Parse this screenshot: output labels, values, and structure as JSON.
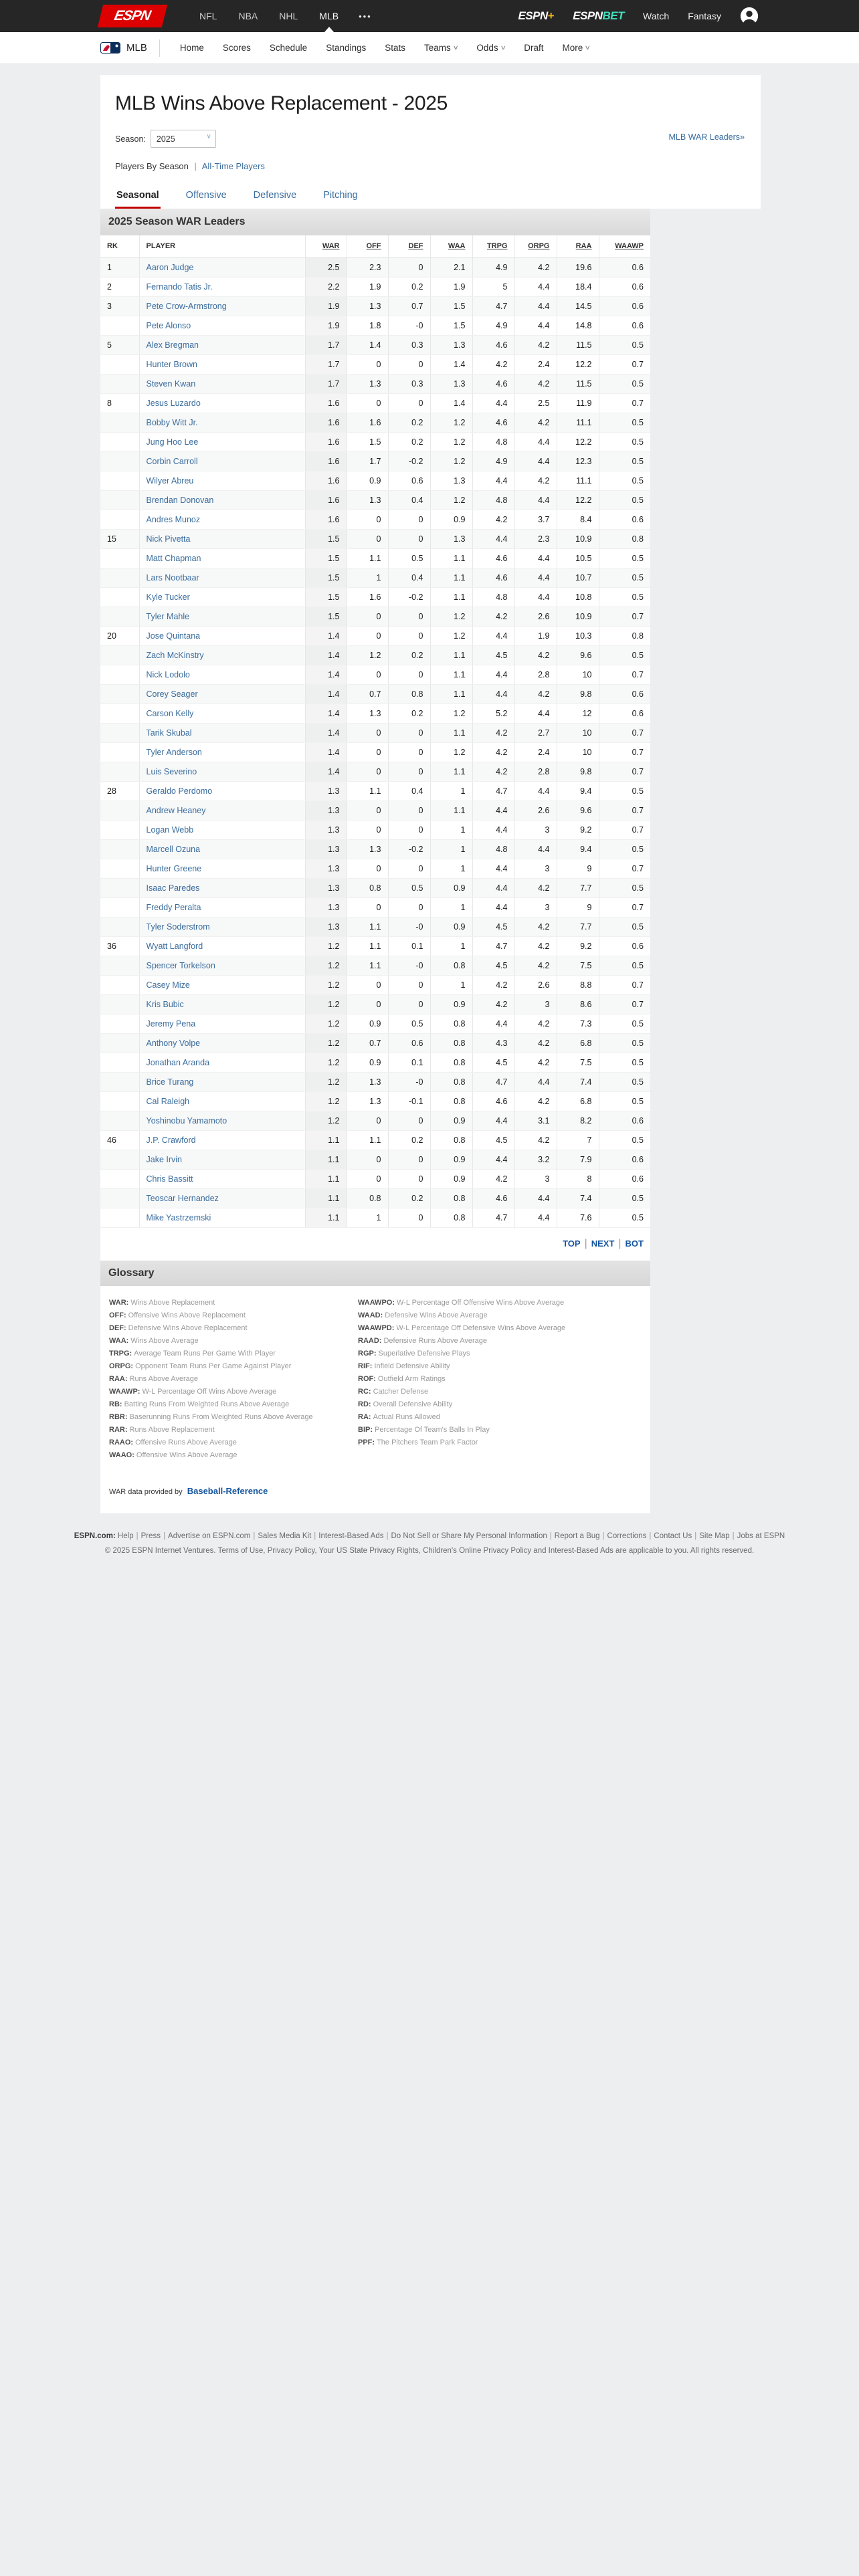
{
  "topbar": {
    "logo": "ESPN",
    "sports": [
      "NFL",
      "NBA",
      "NHL",
      "MLB"
    ],
    "active_sport": "MLB",
    "overflow_icon": "•••",
    "espn_plus_word": "ESPN",
    "espn_plus_suffix": "+",
    "espn_bet_word": "ESPN",
    "espn_bet_suffix": "BET",
    "watch": "Watch",
    "fantasy": "Fantasy"
  },
  "subnav": {
    "league": "MLB",
    "items": [
      {
        "label": "Home",
        "dropdown": false
      },
      {
        "label": "Scores",
        "dropdown": false
      },
      {
        "label": "Schedule",
        "dropdown": false
      },
      {
        "label": "Standings",
        "dropdown": false
      },
      {
        "label": "Stats",
        "dropdown": false
      },
      {
        "label": "Teams",
        "dropdown": true
      },
      {
        "label": "Odds",
        "dropdown": true
      },
      {
        "label": "Draft",
        "dropdown": false
      },
      {
        "label": "More",
        "dropdown": true
      }
    ]
  },
  "page": {
    "title": "MLB Wins Above Replacement - 2025",
    "season_label": "Season:",
    "season_value": "2025",
    "war_leaders_link": "MLB WAR Leaders»",
    "players_by_season": "Players By Season",
    "all_time_players": "All-Time Players",
    "separator": "|"
  },
  "tabs": [
    {
      "label": "Seasonal",
      "active": true
    },
    {
      "label": "Offensive",
      "active": false
    },
    {
      "label": "Defensive",
      "active": false
    },
    {
      "label": "Pitching",
      "active": false
    }
  ],
  "table": {
    "title": "2025 Season WAR Leaders",
    "columns": [
      "RK",
      "PLAYER",
      "WAR",
      "OFF",
      "DEF",
      "WAA",
      "TRPG",
      "ORPG",
      "RAA",
      "WAAWP"
    ],
    "rows": [
      [
        "1",
        "Aaron Judge",
        "2.5",
        "2.3",
        "0",
        "2.1",
        "4.9",
        "4.2",
        "19.6",
        "0.6"
      ],
      [
        "2",
        "Fernando Tatis Jr.",
        "2.2",
        "1.9",
        "0.2",
        "1.9",
        "5",
        "4.4",
        "18.4",
        "0.6"
      ],
      [
        "3",
        "Pete Crow-Armstrong",
        "1.9",
        "1.3",
        "0.7",
        "1.5",
        "4.7",
        "4.4",
        "14.5",
        "0.6"
      ],
      [
        "",
        "Pete Alonso",
        "1.9",
        "1.8",
        "-0",
        "1.5",
        "4.9",
        "4.4",
        "14.8",
        "0.6"
      ],
      [
        "5",
        "Alex Bregman",
        "1.7",
        "1.4",
        "0.3",
        "1.3",
        "4.6",
        "4.2",
        "11.5",
        "0.5"
      ],
      [
        "",
        "Hunter Brown",
        "1.7",
        "0",
        "0",
        "1.4",
        "4.2",
        "2.4",
        "12.2",
        "0.7"
      ],
      [
        "",
        "Steven Kwan",
        "1.7",
        "1.3",
        "0.3",
        "1.3",
        "4.6",
        "4.2",
        "11.5",
        "0.5"
      ],
      [
        "8",
        "Jesus Luzardo",
        "1.6",
        "0",
        "0",
        "1.4",
        "4.4",
        "2.5",
        "11.9",
        "0.7"
      ],
      [
        "",
        "Bobby Witt Jr.",
        "1.6",
        "1.6",
        "0.2",
        "1.2",
        "4.6",
        "4.2",
        "11.1",
        "0.5"
      ],
      [
        "",
        "Jung Hoo Lee",
        "1.6",
        "1.5",
        "0.2",
        "1.2",
        "4.8",
        "4.4",
        "12.2",
        "0.5"
      ],
      [
        "",
        "Corbin Carroll",
        "1.6",
        "1.7",
        "-0.2",
        "1.2",
        "4.9",
        "4.4",
        "12.3",
        "0.5"
      ],
      [
        "",
        "Wilyer Abreu",
        "1.6",
        "0.9",
        "0.6",
        "1.3",
        "4.4",
        "4.2",
        "11.1",
        "0.5"
      ],
      [
        "",
        "Brendan Donovan",
        "1.6",
        "1.3",
        "0.4",
        "1.2",
        "4.8",
        "4.4",
        "12.2",
        "0.5"
      ],
      [
        "",
        "Andres Munoz",
        "1.6",
        "0",
        "0",
        "0.9",
        "4.2",
        "3.7",
        "8.4",
        "0.6"
      ],
      [
        "15",
        "Nick Pivetta",
        "1.5",
        "0",
        "0",
        "1.3",
        "4.4",
        "2.3",
        "10.9",
        "0.8"
      ],
      [
        "",
        "Matt Chapman",
        "1.5",
        "1.1",
        "0.5",
        "1.1",
        "4.6",
        "4.4",
        "10.5",
        "0.5"
      ],
      [
        "",
        "Lars Nootbaar",
        "1.5",
        "1",
        "0.4",
        "1.1",
        "4.6",
        "4.4",
        "10.7",
        "0.5"
      ],
      [
        "",
        "Kyle Tucker",
        "1.5",
        "1.6",
        "-0.2",
        "1.1",
        "4.8",
        "4.4",
        "10.8",
        "0.5"
      ],
      [
        "",
        "Tyler Mahle",
        "1.5",
        "0",
        "0",
        "1.2",
        "4.2",
        "2.6",
        "10.9",
        "0.7"
      ],
      [
        "20",
        "Jose Quintana",
        "1.4",
        "0",
        "0",
        "1.2",
        "4.4",
        "1.9",
        "10.3",
        "0.8"
      ],
      [
        "",
        "Zach McKinstry",
        "1.4",
        "1.2",
        "0.2",
        "1.1",
        "4.5",
        "4.2",
        "9.6",
        "0.5"
      ],
      [
        "",
        "Nick Lodolo",
        "1.4",
        "0",
        "0",
        "1.1",
        "4.4",
        "2.8",
        "10",
        "0.7"
      ],
      [
        "",
        "Corey Seager",
        "1.4",
        "0.7",
        "0.8",
        "1.1",
        "4.4",
        "4.2",
        "9.8",
        "0.6"
      ],
      [
        "",
        "Carson Kelly",
        "1.4",
        "1.3",
        "0.2",
        "1.2",
        "5.2",
        "4.4",
        "12",
        "0.6"
      ],
      [
        "",
        "Tarik Skubal",
        "1.4",
        "0",
        "0",
        "1.1",
        "4.2",
        "2.7",
        "10",
        "0.7"
      ],
      [
        "",
        "Tyler Anderson",
        "1.4",
        "0",
        "0",
        "1.2",
        "4.2",
        "2.4",
        "10",
        "0.7"
      ],
      [
        "",
        "Luis Severino",
        "1.4",
        "0",
        "0",
        "1.1",
        "4.2",
        "2.8",
        "9.8",
        "0.7"
      ],
      [
        "28",
        "Geraldo Perdomo",
        "1.3",
        "1.1",
        "0.4",
        "1",
        "4.7",
        "4.4",
        "9.4",
        "0.5"
      ],
      [
        "",
        "Andrew Heaney",
        "1.3",
        "0",
        "0",
        "1.1",
        "4.4",
        "2.6",
        "9.6",
        "0.7"
      ],
      [
        "",
        "Logan Webb",
        "1.3",
        "0",
        "0",
        "1",
        "4.4",
        "3",
        "9.2",
        "0.7"
      ],
      [
        "",
        "Marcell Ozuna",
        "1.3",
        "1.3",
        "-0.2",
        "1",
        "4.8",
        "4.4",
        "9.4",
        "0.5"
      ],
      [
        "",
        "Hunter Greene",
        "1.3",
        "0",
        "0",
        "1",
        "4.4",
        "3",
        "9",
        "0.7"
      ],
      [
        "",
        "Isaac Paredes",
        "1.3",
        "0.8",
        "0.5",
        "0.9",
        "4.4",
        "4.2",
        "7.7",
        "0.5"
      ],
      [
        "",
        "Freddy Peralta",
        "1.3",
        "0",
        "0",
        "1",
        "4.4",
        "3",
        "9",
        "0.7"
      ],
      [
        "",
        "Tyler Soderstrom",
        "1.3",
        "1.1",
        "-0",
        "0.9",
        "4.5",
        "4.2",
        "7.7",
        "0.5"
      ],
      [
        "36",
        "Wyatt Langford",
        "1.2",
        "1.1",
        "0.1",
        "1",
        "4.7",
        "4.2",
        "9.2",
        "0.6"
      ],
      [
        "",
        "Spencer Torkelson",
        "1.2",
        "1.1",
        "-0",
        "0.8",
        "4.5",
        "4.2",
        "7.5",
        "0.5"
      ],
      [
        "",
        "Casey Mize",
        "1.2",
        "0",
        "0",
        "1",
        "4.2",
        "2.6",
        "8.8",
        "0.7"
      ],
      [
        "",
        "Kris Bubic",
        "1.2",
        "0",
        "0",
        "0.9",
        "4.2",
        "3",
        "8.6",
        "0.7"
      ],
      [
        "",
        "Jeremy Pena",
        "1.2",
        "0.9",
        "0.5",
        "0.8",
        "4.4",
        "4.2",
        "7.3",
        "0.5"
      ],
      [
        "",
        "Anthony Volpe",
        "1.2",
        "0.7",
        "0.6",
        "0.8",
        "4.3",
        "4.2",
        "6.8",
        "0.5"
      ],
      [
        "",
        "Jonathan Aranda",
        "1.2",
        "0.9",
        "0.1",
        "0.8",
        "4.5",
        "4.2",
        "7.5",
        "0.5"
      ],
      [
        "",
        "Brice Turang",
        "1.2",
        "1.3",
        "-0",
        "0.8",
        "4.7",
        "4.4",
        "7.4",
        "0.5"
      ],
      [
        "",
        "Cal Raleigh",
        "1.2",
        "1.3",
        "-0.1",
        "0.8",
        "4.6",
        "4.2",
        "6.8",
        "0.5"
      ],
      [
        "",
        "Yoshinobu Yamamoto",
        "1.2",
        "0",
        "0",
        "0.9",
        "4.4",
        "3.1",
        "8.2",
        "0.6"
      ],
      [
        "46",
        "J.P. Crawford",
        "1.1",
        "1.1",
        "0.2",
        "0.8",
        "4.5",
        "4.2",
        "7",
        "0.5"
      ],
      [
        "",
        "Jake Irvin",
        "1.1",
        "0",
        "0",
        "0.9",
        "4.4",
        "3.2",
        "7.9",
        "0.6"
      ],
      [
        "",
        "Chris Bassitt",
        "1.1",
        "0",
        "0",
        "0.9",
        "4.2",
        "3",
        "8",
        "0.6"
      ],
      [
        "",
        "Teoscar Hernandez",
        "1.1",
        "0.8",
        "0.2",
        "0.8",
        "4.6",
        "4.4",
        "7.4",
        "0.5"
      ],
      [
        "",
        "Mike Yastrzemski",
        "1.1",
        "1",
        "0",
        "0.8",
        "4.7",
        "4.4",
        "7.6",
        "0.5"
      ]
    ]
  },
  "pagination": {
    "links": [
      "TOP",
      "NEXT",
      "BOT"
    ]
  },
  "glossary": {
    "title": "Glossary",
    "left": [
      [
        "WAR:",
        "Wins Above Replacement"
      ],
      [
        "OFF:",
        "Offensive Wins Above Replacement"
      ],
      [
        "DEF:",
        "Defensive Wins Above Replacement"
      ],
      [
        "WAA:",
        "Wins Above Average"
      ],
      [
        "TRPG:",
        "Average Team Runs Per Game With Player"
      ],
      [
        "ORPG:",
        "Opponent Team Runs Per Game Against Player"
      ],
      [
        "RAA:",
        "Runs Above Average"
      ],
      [
        "WAAWP:",
        "W-L Percentage Off Wins Above Average"
      ],
      [
        "RB:",
        "Batting Runs From Weighted Runs Above Average"
      ],
      [
        "RBR:",
        "Baserunning Runs From Weighted Runs Above Average"
      ],
      [
        "RAR:",
        "Runs Above Replacement"
      ],
      [
        "RAAO:",
        "Offensive Runs Above Average"
      ],
      [
        "WAAO:",
        "Offensive Wins Above Average"
      ]
    ],
    "right": [
      [
        "WAAWPO:",
        "W-L Percentage Off Offensive Wins Above Average"
      ],
      [
        "WAAD:",
        "Defensive Wins Above Average"
      ],
      [
        "WAAWPD:",
        "W-L Percentage Off Defensive Wins Above Average"
      ],
      [
        "RAAD:",
        "Defensive Runs Above Average"
      ],
      [
        "RGP:",
        "Superlative Defensive Plays"
      ],
      [
        "RIF:",
        "Infield Defensive Ability"
      ],
      [
        "ROF:",
        "Outfield Arm Ratings"
      ],
      [
        "RC:",
        "Catcher Defense"
      ],
      [
        "RD:",
        "Overall Defensive Ability"
      ],
      [
        "RA:",
        "Actual Runs Allowed"
      ],
      [
        "BIP:",
        "Percentage Of Team's Balls In Play"
      ],
      [
        "PPF:",
        "The Pitchers Team Park Factor"
      ]
    ]
  },
  "provider": {
    "prefix": "WAR data provided by",
    "link": "Baseball-Reference"
  },
  "footer": {
    "brand": "ESPN.com:",
    "links": [
      "Help",
      "Press",
      "Advertise on ESPN.com",
      "Sales Media Kit",
      "Interest-Based Ads",
      "Do Not Sell or Share My Personal Information",
      "Report a Bug",
      "Corrections",
      "Contact Us",
      "Site Map",
      "Jobs at ESPN"
    ],
    "copyright": "© 2025 ESPN Internet Ventures. Terms of Use, Privacy Policy, Your US State Privacy Rights, Children's Online Privacy Policy and Interest-Based Ads are applicable to you. All rights reserved."
  },
  "colors": {
    "espn_red": "#dd0000",
    "accent_red": "#c00000",
    "topbar_bg": "#262626",
    "page_bg": "#eceef0",
    "link_blue": "#3a6d9e",
    "action_blue": "#15559e",
    "plus_gold": "#efb11d",
    "bet_teal": "#3fe0bd"
  }
}
